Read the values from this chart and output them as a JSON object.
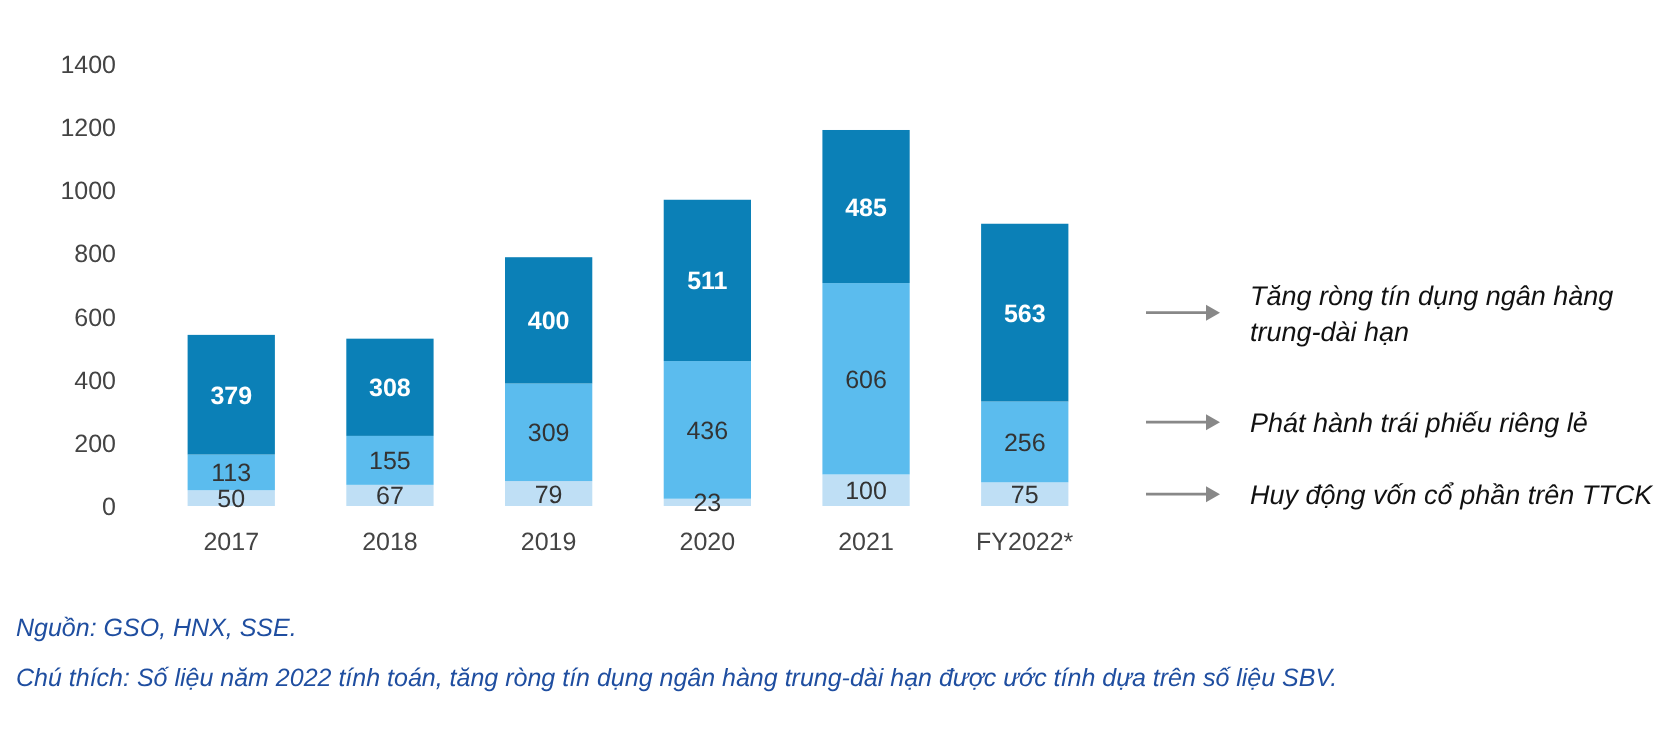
{
  "chart_data": {
    "type": "bar",
    "stacked": true,
    "categories": [
      "2017",
      "2018",
      "2019",
      "2020",
      "2021",
      "FY2022*"
    ],
    "series": [
      {
        "name": "Huy động vốn cổ phần trên TTCK",
        "color": "#bfdff5",
        "values": [
          50,
          67,
          79,
          23,
          100,
          75
        ]
      },
      {
        "name": "Phát hành trái phiếu riêng lẻ",
        "color": "#5bbcee",
        "values": [
          113,
          155,
          309,
          436,
          606,
          256
        ]
      },
      {
        "name": "Tăng ròng tín dụng ngân hàng trung-dài hạn",
        "color": "#0b80b7",
        "values": [
          379,
          308,
          400,
          511,
          485,
          563
        ]
      }
    ],
    "ylim": [
      0,
      1400
    ],
    "yticks": [
      0,
      200,
      400,
      600,
      800,
      1000,
      1200,
      1400
    ],
    "grid": false,
    "legend": "right",
    "data_labels": true,
    "annotations": [
      "Nguồn: GSO, HNX, SSE.",
      "Chú thích: Số liệu năm 2022 tính toán, tăng ròng tín dụng ngân hàng trung-dài hạn được ước tính dựa trên số liệu SBV."
    ]
  }
}
